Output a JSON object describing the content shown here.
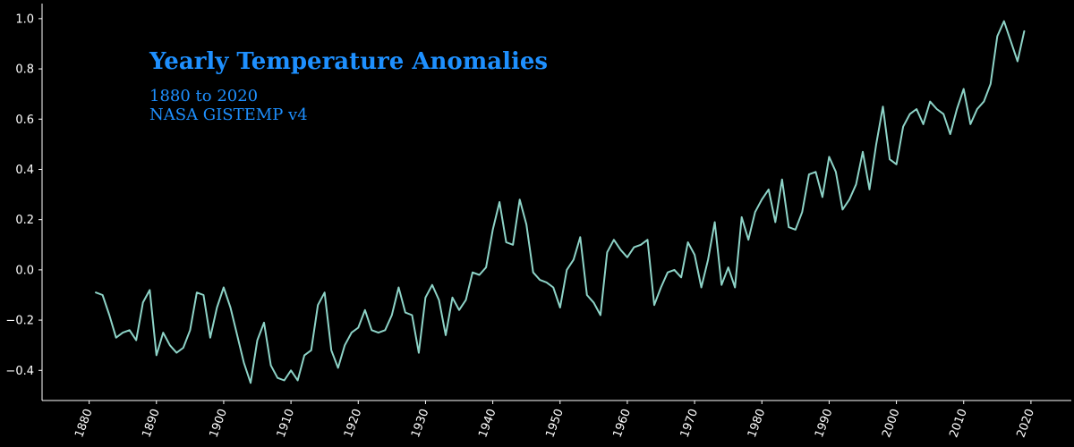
{
  "chart_data": {
    "type": "line",
    "title": "Yearly Temperature Anomalies",
    "subtitle_lines": [
      "1880 to 2020",
      "NASA GISTEMP v4"
    ],
    "xlabel": "",
    "ylabel": "",
    "xlim": [
      1873,
      2026
    ],
    "ylim": [
      -0.52,
      1.06
    ],
    "x_ticks": [
      1880,
      1890,
      1900,
      1910,
      1920,
      1930,
      1940,
      1950,
      1960,
      1970,
      1980,
      1990,
      2000,
      2010,
      2020
    ],
    "y_ticks": [
      -0.4,
      -0.2,
      0.0,
      0.2,
      0.4,
      0.6,
      0.8,
      1.0
    ],
    "y_tick_labels": [
      "−0.4",
      "−0.2",
      "0.0",
      "0.2",
      "0.4",
      "0.6",
      "0.8",
      "1.0"
    ],
    "grid": false,
    "legend": "none",
    "colors": {
      "background": "#000000",
      "axis": "#ffffff",
      "line": "#8dd3c7",
      "title": "#1e90ff"
    },
    "series": [
      {
        "x": [
          1881,
          1882,
          1883,
          1884,
          1885,
          1886,
          1887,
          1888,
          1889,
          1890,
          1891,
          1892,
          1893,
          1894,
          1895,
          1896,
          1897,
          1898,
          1899,
          1900,
          1901,
          1902,
          1903,
          1904,
          1905,
          1906,
          1907,
          1908,
          1909,
          1910,
          1911,
          1912,
          1913,
          1914,
          1915,
          1916,
          1917,
          1918,
          1919,
          1920,
          1921,
          1922,
          1923,
          1924,
          1925,
          1926,
          1927,
          1928,
          1929,
          1930,
          1931,
          1932,
          1933,
          1934,
          1935,
          1936,
          1937,
          1938,
          1939,
          1940,
          1941,
          1942,
          1943,
          1944,
          1945,
          1946,
          1947,
          1948,
          1949,
          1950,
          1951,
          1952,
          1953,
          1954,
          1955,
          1956,
          1957,
          1958,
          1959,
          1960,
          1961,
          1962,
          1963,
          1964,
          1965,
          1966,
          1967,
          1968,
          1969,
          1970,
          1971,
          1972,
          1973,
          1974,
          1975,
          1976,
          1977,
          1978,
          1979,
          1980,
          1981,
          1982,
          1983,
          1984,
          1985,
          1986,
          1987,
          1988,
          1989,
          1990,
          1991,
          1992,
          1993,
          1994,
          1995,
          1996,
          1997,
          1998,
          1999,
          2000,
          2001,
          2002,
          2003,
          2004,
          2005,
          2006,
          2007,
          2008,
          2009,
          2010,
          2011,
          2012,
          2013,
          2014,
          2015,
          2016,
          2017,
          2018,
          2019
        ],
        "y": [
          -0.09,
          -0.1,
          -0.18,
          -0.27,
          -0.25,
          -0.24,
          -0.28,
          -0.13,
          -0.08,
          -0.34,
          -0.25,
          -0.3,
          -0.33,
          -0.31,
          -0.24,
          -0.09,
          -0.1,
          -0.27,
          -0.15,
          -0.07,
          -0.15,
          -0.26,
          -0.37,
          -0.45,
          -0.28,
          -0.21,
          -0.38,
          -0.43,
          -0.44,
          -0.4,
          -0.44,
          -0.34,
          -0.32,
          -0.14,
          -0.09,
          -0.32,
          -0.39,
          -0.3,
          -0.25,
          -0.23,
          -0.16,
          -0.24,
          -0.25,
          -0.24,
          -0.18,
          -0.07,
          -0.17,
          -0.18,
          -0.33,
          -0.11,
          -0.06,
          -0.12,
          -0.26,
          -0.11,
          -0.16,
          -0.12,
          -0.01,
          -0.02,
          0.01,
          0.16,
          0.27,
          0.11,
          0.1,
          0.28,
          0.18,
          -0.01,
          -0.04,
          -0.05,
          -0.07,
          -0.15,
          0.0,
          0.04,
          0.13,
          -0.1,
          -0.13,
          -0.18,
          0.07,
          0.12,
          0.08,
          0.05,
          0.09,
          0.1,
          0.12,
          -0.14,
          -0.07,
          -0.01,
          0.0,
          -0.03,
          0.11,
          0.06,
          -0.07,
          0.04,
          0.19,
          -0.06,
          0.01,
          -0.07,
          0.21,
          0.12,
          0.23,
          0.28,
          0.32,
          0.19,
          0.36,
          0.17,
          0.16,
          0.23,
          0.38,
          0.39,
          0.29,
          0.45,
          0.39,
          0.24,
          0.28,
          0.34,
          0.47,
          0.32,
          0.5,
          0.65,
          0.44,
          0.42,
          0.57,
          0.62,
          0.64,
          0.58,
          0.67,
          0.64,
          0.62,
          0.54,
          0.64,
          0.72,
          0.58,
          0.64,
          0.67,
          0.74,
          0.93,
          0.99,
          0.91,
          0.83,
          0.95
        ]
      }
    ]
  }
}
